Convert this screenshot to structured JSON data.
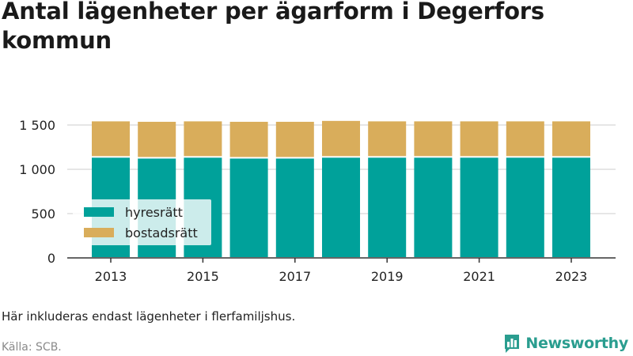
{
  "title": "Antal lägenheter per ägarform i Degerfors kommun",
  "note": "Här inkluderas endast lägenheter i flerfamiljshus.",
  "source": "Källa: SCB.",
  "logo": {
    "text": "Newsworthy",
    "icon": "newsworthy-chart-icon",
    "color": "#2a9d8f"
  },
  "chart_data": {
    "type": "bar",
    "stacked": true,
    "categories": [
      "2013",
      "2014",
      "2015",
      "2016",
      "2017",
      "2018",
      "2019",
      "2020",
      "2021",
      "2022",
      "2023"
    ],
    "x_tick_labels": [
      "2013",
      "2015",
      "2017",
      "2019",
      "2021",
      "2023"
    ],
    "series": [
      {
        "name": "hyresrätt",
        "color": "#00a19a",
        "values": [
          1140,
          1130,
          1140,
          1130,
          1130,
          1140,
          1140,
          1140,
          1140,
          1140,
          1140
        ]
      },
      {
        "name": "bostadsrätt",
        "color": "#d9ad5b",
        "values": [
          410,
          415,
          410,
          415,
          415,
          415,
          410,
          410,
          410,
          410,
          410
        ]
      }
    ],
    "ylim": [
      0,
      1550
    ],
    "y_ticks": [
      0,
      500,
      1000,
      1500
    ],
    "y_tick_labels": [
      "0",
      "500",
      "1 000",
      "1 500"
    ],
    "grid": true,
    "legend_position": "bottom-left"
  }
}
